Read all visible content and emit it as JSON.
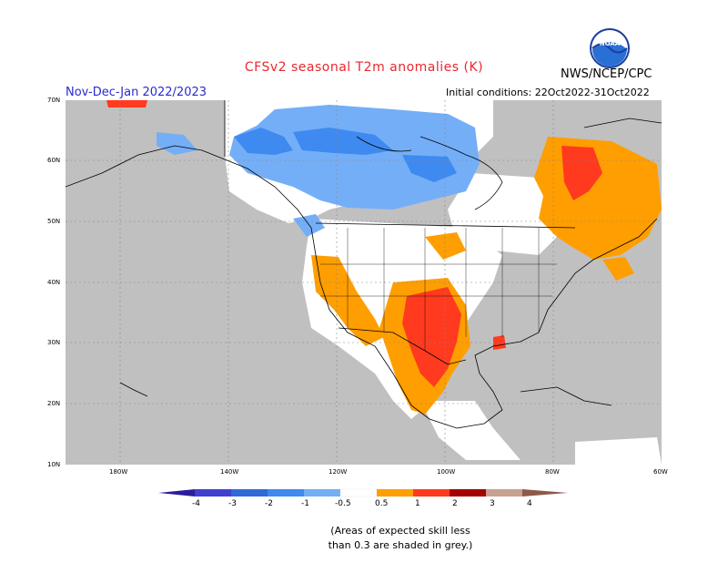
{
  "header": {
    "title": "CFSv2 seasonal T2m anomalies (K)",
    "agency": "NWS/NCEP/CPC",
    "season": "Nov-Dec-Jan 2022/2023",
    "initial_conditions": "Initial conditions: 22Oct2022-31Oct2022",
    "logo_text": "NOAA"
  },
  "map": {
    "region": "North America",
    "lat_labels": [
      "70N",
      "60N",
      "50N",
      "40N",
      "30N",
      "20N",
      "10N"
    ],
    "lon_labels": [
      "180W",
      "140W",
      "120W",
      "100W",
      "80W",
      "60W"
    ],
    "colors": {
      "land_skill_masked": "#c0c0c0",
      "neutral": "#ffffff",
      "cold_1": "#74aef7",
      "cold_2": "#3f8af0",
      "warm_1": "#ff9e00",
      "warm_2": "#ff3a1e",
      "warm_3": "#a50000"
    }
  },
  "colorbar": {
    "labels": [
      "-4",
      "-3",
      "-2",
      "-1",
      "-0.5",
      "0.5",
      "1",
      "2",
      "3",
      "4"
    ],
    "colors": [
      "#2a1e9a",
      "#3f3fd0",
      "#2f6ad8",
      "#3f8af0",
      "#74aef7",
      "#ffffff",
      "#ff9e00",
      "#ff3a1e",
      "#a50000",
      "#c8a090",
      "#8b5a4a"
    ]
  },
  "footnote": {
    "line1": "(Areas of expected skill less",
    "line2": "than 0.3 are shaded in grey.)"
  }
}
